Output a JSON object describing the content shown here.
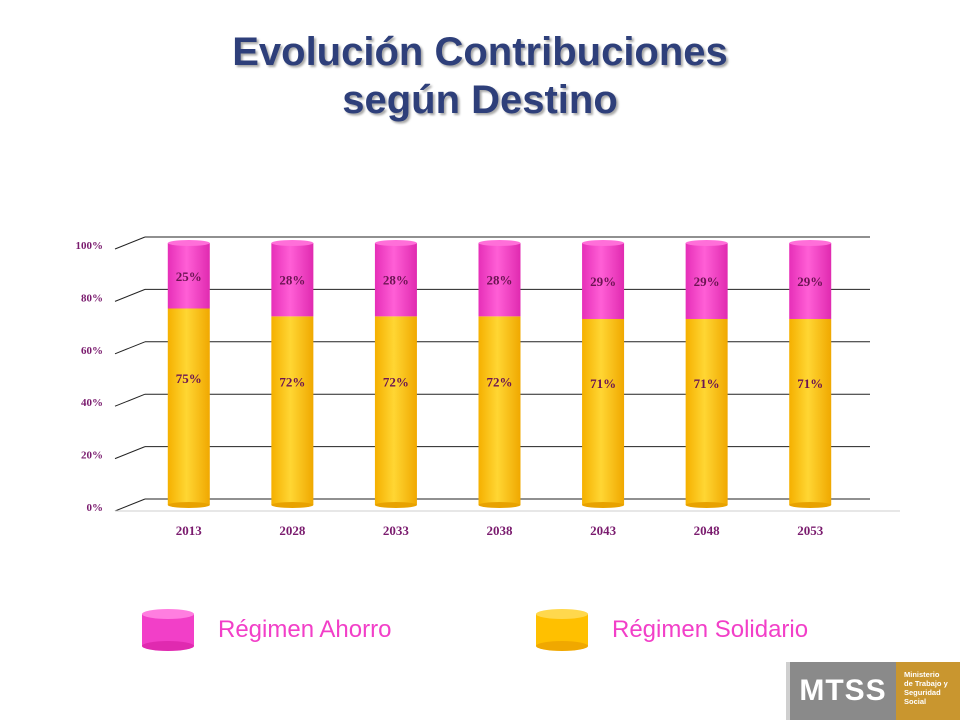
{
  "title": {
    "line1": "Evolución Contribuciones",
    "line2": "según Destino"
  },
  "colors": {
    "ahorro": "#f23fc8",
    "solidario": "#ffc000",
    "axis_text": "#7a1b6e",
    "title": "#2e3f7a"
  },
  "chart_data": {
    "type": "bar",
    "stacked": true,
    "percent": true,
    "categories": [
      "2013",
      "2028",
      "2033",
      "2038",
      "2043",
      "2048",
      "2053"
    ],
    "series": [
      {
        "name": "Régimen Solidario",
        "values": [
          75,
          72,
          72,
          72,
          71,
          71,
          71
        ],
        "labels": [
          "75%",
          "72%",
          "72%",
          "72%",
          "71%",
          "71%",
          "71%"
        ],
        "color": "#ffc000"
      },
      {
        "name": "Régimen Ahorro",
        "values": [
          25,
          28,
          28,
          28,
          29,
          29,
          29
        ],
        "labels": [
          "25%",
          "28%",
          "28%",
          "28%",
          "29%",
          "29%",
          "29%"
        ],
        "color": "#f23fc8"
      }
    ],
    "yticks": [
      "0%",
      "20%",
      "40%",
      "60%",
      "80%",
      "100%"
    ],
    "ylim": [
      0,
      100
    ],
    "grid": true,
    "legend_position": "bottom"
  },
  "legend": {
    "ahorro_label": "Régimen Ahorro",
    "solidario_label": "Régimen Solidario"
  },
  "logo": {
    "acronym": "MTSS",
    "line1": "Ministerio",
    "line2": "de Trabajo y",
    "line3": "Seguridad",
    "line4": "Social"
  }
}
